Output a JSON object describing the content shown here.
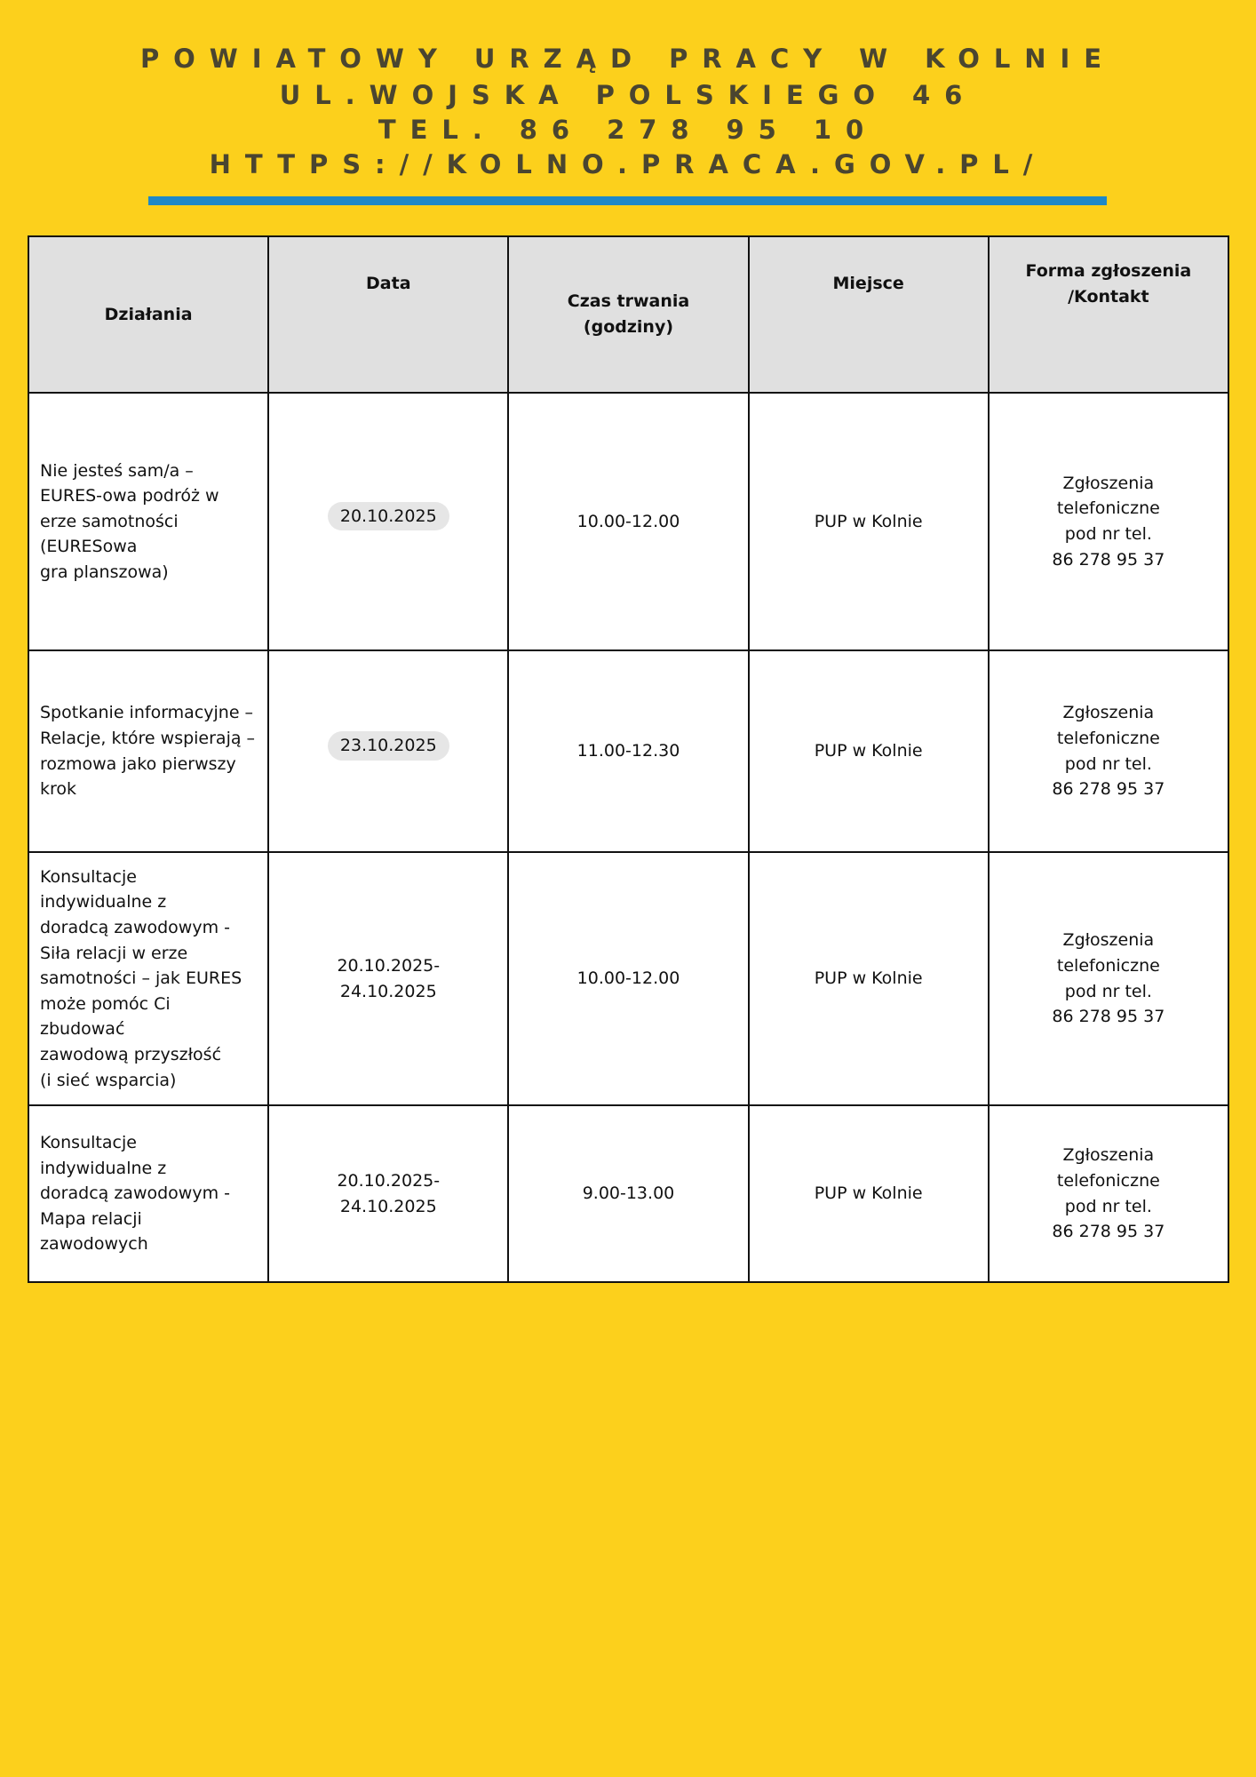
{
  "header": {
    "line1": "POWIATOWY URZĄD PRACY W KOLNIE",
    "line2": "UL.WOJSKA POLSKIEGO 46",
    "line3": "TEL. 86 278 95 10",
    "line4": "HTTPS://KOLNO.PRACA.GOV.PL/",
    "accent_color": "#1E88C8",
    "background_color": "#FCD01C"
  },
  "table": {
    "columns": [
      "Działania",
      "Data",
      "Czas trwania (godziny)",
      "Miejsce",
      "Forma zgłoszenia\n/Kontakt"
    ],
    "rows": [
      {
        "activity": "Nie jesteś sam/a –\nEURES-owa podróż w\nerze samotności\n(EURESowa\ngra planszowa)",
        "date": "20.10.2025",
        "time": "10.00-12.00",
        "place": "PUP w Kolnie",
        "contact": "Zgłoszenia\ntelefoniczne\npod nr tel.\n86 278 95 37"
      },
      {
        "activity": "Spotkanie informacyjne –\nRelacje, które wspierają –\nrozmowa jako pierwszy\nkrok",
        "date": "23.10.2025",
        "time": "11.00-12.30",
        "place": "PUP w Kolnie",
        "contact": "Zgłoszenia\ntelefoniczne\npod nr tel.\n86 278 95 37"
      },
      {
        "activity": "Konsultacje\nindywidualne z\ndoradcą zawodowym -\nSiła relacji w erze\nsamotności – jak EURES\nmoże pomóc Ci\nzbudować\nzawodową przyszłość\n(i sieć wsparcia)",
        "date": "20.10.2025-\n24.10.2025",
        "time": "10.00-12.00",
        "place": "PUP w Kolnie",
        "contact": "Zgłoszenia\ntelefoniczne\npod nr tel.\n86 278 95 37"
      },
      {
        "activity": "Konsultacje\nindywidualne z\ndoradcą zawodowym -\nMapa relacji\nzawodowych",
        "date": "20.10.2025-\n24.10.2025",
        "time": "9.00-13.00",
        "place": "PUP w Kolnie",
        "contact": "Zgłoszenia\ntelefoniczne\npod nr tel.\n86 278 95 37"
      }
    ]
  }
}
